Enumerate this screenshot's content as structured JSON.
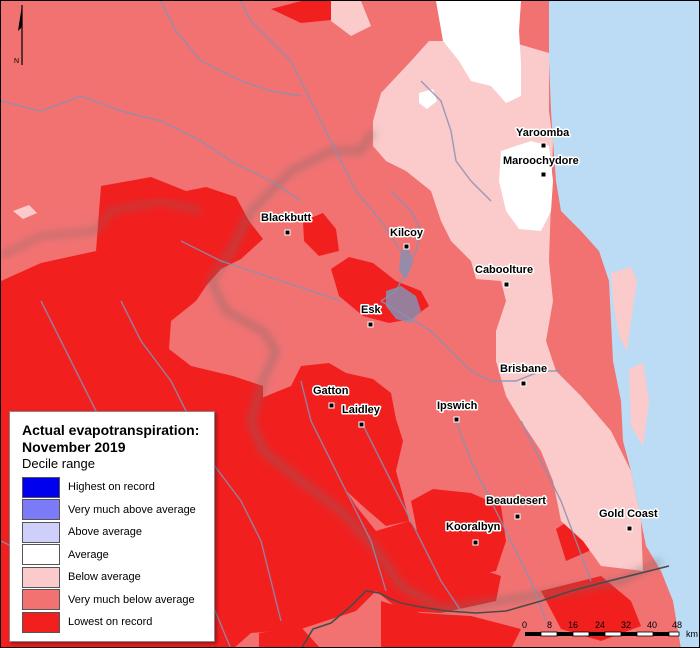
{
  "legend": {
    "title_line1": "Actual evapotranspiration:",
    "title_line2": "November 2019",
    "subtitle": "Decile range",
    "items": [
      {
        "label": "Highest on record",
        "color": "#0000ee"
      },
      {
        "label": "Very much above average",
        "color": "#7b7bf7"
      },
      {
        "label": "Above average",
        "color": "#cfcffb"
      },
      {
        "label": "Average",
        "color": "#ffffff"
      },
      {
        "label": "Below average",
        "color": "#fbcaca"
      },
      {
        "label": "Very much below average",
        "color": "#f27272"
      },
      {
        "label": "Lowest on record",
        "color": "#f21f1f"
      }
    ]
  },
  "towns": [
    {
      "name": "Yaroomba"
    },
    {
      "name": "Maroochydore"
    },
    {
      "name": "Blackbutt"
    },
    {
      "name": "Kilcoy"
    },
    {
      "name": "Caboolture"
    },
    {
      "name": "Esk"
    },
    {
      "name": "Brisbane"
    },
    {
      "name": "Gatton"
    },
    {
      "name": "Laidley"
    },
    {
      "name": "Ipswich"
    },
    {
      "name": "Beaudesert"
    },
    {
      "name": "Gold Coast"
    },
    {
      "name": "Kooralbyn"
    }
  ],
  "scale_bar": {
    "ticks": [
      "0",
      "8",
      "16",
      "24",
      "32",
      "40",
      "48"
    ],
    "unit": "km"
  },
  "north_arrow": {
    "label": "N"
  },
  "colors": {
    "ocean": "#bcdcf5",
    "river": "#8a8fb2",
    "border": "#4a4a4a"
  }
}
